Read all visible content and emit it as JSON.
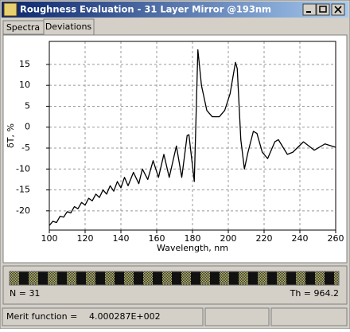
{
  "window": {
    "title": "Roughness Evaluation - 31 Layer Mirror @193nm"
  },
  "tabs": [
    "Spectra",
    "Deviations"
  ],
  "chart_data": {
    "type": "line",
    "xlabel": "Wavelength, nm",
    "ylabel": "δT, %",
    "xlim": [
      100,
      260
    ],
    "ylim": [
      -24.6,
      20.5
    ],
    "xticks": [
      100,
      120,
      140,
      160,
      180,
      200,
      220,
      240,
      260
    ],
    "yticks": [
      -20,
      -15,
      -10,
      -5,
      0,
      5,
      10,
      15
    ],
    "grid": true,
    "series": [
      {
        "name": null,
        "color": "#000000",
        "x": [
          100,
          102,
          104,
          106,
          108,
          110,
          112,
          114,
          116,
          118,
          120,
          122,
          124,
          126,
          128,
          130,
          132,
          134,
          136,
          138,
          140,
          142,
          144,
          147,
          150,
          152,
          155,
          158,
          161,
          164,
          167,
          171,
          174,
          177,
          178,
          181,
          183,
          185,
          188,
          191,
          195,
          198,
          201,
          204,
          205,
          207,
          209,
          211,
          214,
          216,
          219,
          222,
          226,
          228,
          233,
          236,
          242,
          248,
          254,
          260
        ],
        "values": [
          -23.5,
          -22.5,
          -22.8,
          -21.3,
          -21.5,
          -20.2,
          -20.5,
          -19.0,
          -19.5,
          -18.0,
          -18.6,
          -17.0,
          -17.6,
          -16.0,
          -16.8,
          -15.0,
          -16.0,
          -14.0,
          -15.3,
          -13.0,
          -14.5,
          -12.0,
          -14.0,
          -10.8,
          -13.5,
          -10.0,
          -12.5,
          -8.0,
          -12.0,
          -6.5,
          -12.0,
          -4.5,
          -12.0,
          -2.0,
          -1.8,
          -13.0,
          18.5,
          10,
          4,
          2.5,
          2.5,
          4,
          8,
          15.5,
          14,
          -3,
          -10,
          -6,
          -1.0,
          -1.5,
          -6,
          -7.5,
          -3.5,
          -3.0,
          -6.5,
          -6.0,
          -3.5,
          -5.5,
          -4.0,
          -4.8
        ]
      }
    ]
  },
  "structure": {
    "n_label": "N = 31",
    "th_label": "Th = 964.2"
  },
  "status": {
    "label": "Merit function =",
    "value": "4.000287E+002"
  }
}
